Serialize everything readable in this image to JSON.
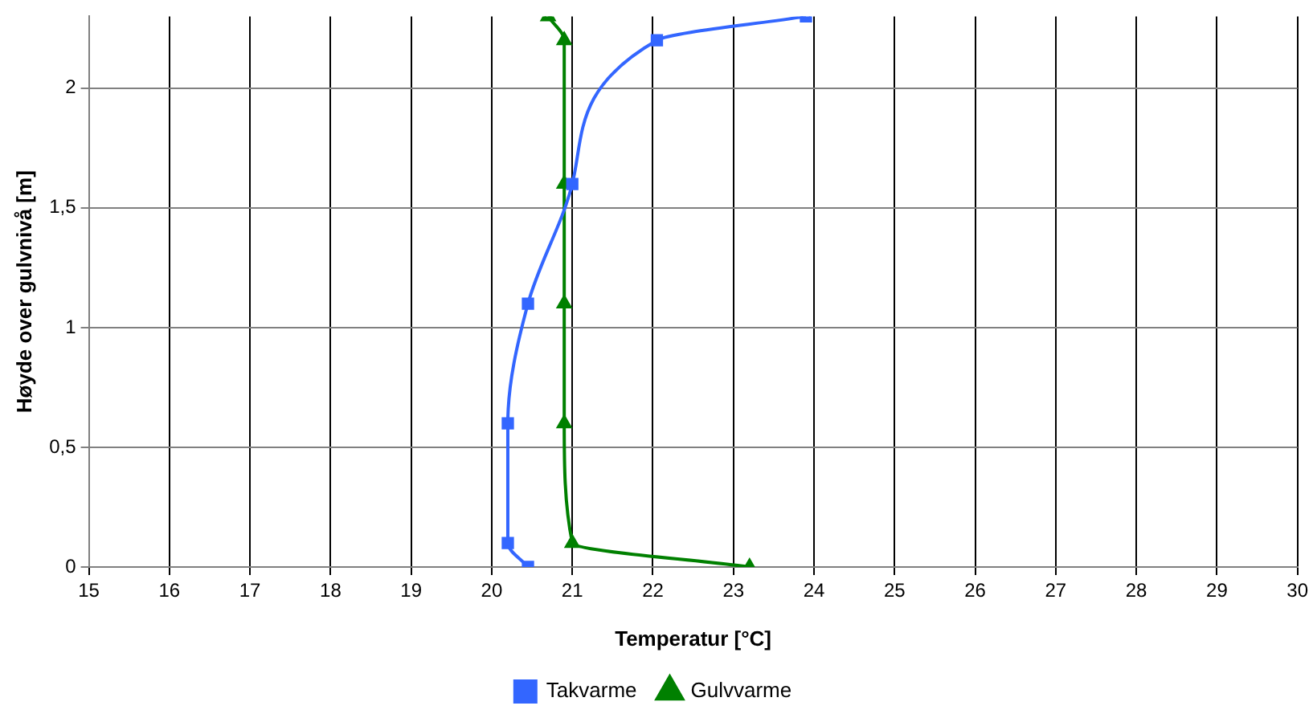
{
  "chart_data": {
    "type": "line",
    "xlabel": "Temperatur [°C]",
    "ylabel": "Høyde over gulvnivå [m]",
    "xlim": [
      15,
      30
    ],
    "xticks": [
      15,
      16,
      17,
      18,
      19,
      20,
      21,
      22,
      23,
      24,
      25,
      26,
      27,
      28,
      29,
      30
    ],
    "ylim": [
      0,
      2.3
    ],
    "yticks": [
      0,
      {
        "value": 0.5,
        "label": "0,5"
      },
      1,
      {
        "value": 1.5,
        "label": "1,5"
      },
      2
    ],
    "grid": true,
    "legend": "bottom",
    "series": [
      {
        "name": "Takvarme",
        "color": "#3366ff",
        "marker": "square",
        "x": [
          20.45,
          20.2,
          20.2,
          20.45,
          21.0,
          22.05,
          23.9
        ],
        "values": [
          0,
          0.1,
          0.6,
          1.1,
          1.6,
          2.2,
          2.3
        ]
      },
      {
        "name": "Gulvvarme",
        "color": "#008000",
        "marker": "triangle",
        "x": [
          23.2,
          21.0,
          20.9,
          20.9,
          20.9,
          20.9,
          20.7
        ],
        "values": [
          0,
          0.1,
          0.6,
          1.1,
          1.6,
          2.2,
          2.3
        ]
      }
    ]
  }
}
